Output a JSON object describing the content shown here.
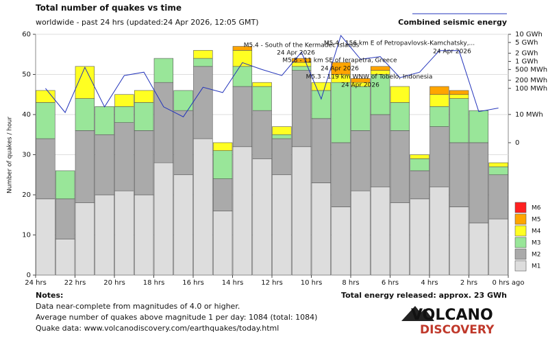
{
  "chart_data": {
    "type": "stacked_bar",
    "title": "Total number of quakes vs time",
    "subtitle": "worldwide - past 24 hrs (updated:24 Apr 2026, 12:05 GMT)",
    "ylabel": "Number of quakes / hour",
    "ylim": [
      0,
      60
    ],
    "yticks": [
      0,
      10,
      20,
      30,
      40,
      50,
      60
    ],
    "xtick_labels": [
      "24 hrs",
      "22 hrs",
      "20 hrs",
      "18 hrs",
      "16 hrs",
      "14 hrs",
      "12 hrs",
      "10 hrs",
      "8 hrs",
      "6 hrs",
      "4 hrs",
      "2 hrs",
      "0 hrs ago"
    ],
    "series": [
      {
        "name": "M1",
        "color": "#dddddd",
        "values": [
          19,
          9,
          18,
          20,
          21,
          20,
          28,
          25,
          34,
          16,
          32,
          29,
          25,
          32,
          23,
          17,
          21,
          22,
          18,
          19,
          22,
          17,
          13,
          14
        ]
      },
      {
        "name": "M2",
        "color": "#aaaaaa",
        "values": [
          15,
          10,
          18,
          15,
          17,
          16,
          20,
          16,
          18,
          8,
          15,
          12,
          9,
          19,
          16,
          16,
          15,
          18,
          18,
          7,
          15,
          16,
          20,
          11
        ]
      },
      {
        "name": "M3",
        "color": "#99e699",
        "values": [
          9,
          7,
          8,
          7,
          4,
          7,
          6,
          5,
          2,
          7,
          5,
          6,
          1,
          1,
          7,
          15,
          11,
          10,
          7,
          3,
          5,
          11,
          8,
          2
        ]
      },
      {
        "name": "M4",
        "color": "#ffff22",
        "values": [
          3,
          0,
          8,
          0,
          3,
          3,
          0,
          0,
          2,
          2,
          4,
          1,
          2,
          1,
          2,
          2,
          1,
          1,
          4,
          1,
          3,
          1,
          0,
          1
        ]
      },
      {
        "name": "M5",
        "color": "#ffa500",
        "values": [
          0,
          0,
          0,
          0,
          0,
          0,
          0,
          0,
          0,
          0,
          1,
          0,
          0,
          1,
          0,
          3,
          1,
          1,
          0,
          0,
          2,
          1,
          0,
          0
        ]
      },
      {
        "name": "M6",
        "color": "#ff2020",
        "values": [
          0,
          0,
          0,
          0,
          0,
          0,
          0,
          0,
          0,
          0,
          0,
          0,
          0,
          0,
          0,
          0,
          0,
          0,
          0,
          0,
          0,
          0,
          0,
          0
        ]
      }
    ],
    "energy": {
      "name": "Combined seismic energy",
      "color": "#2233bb",
      "axis": "y2",
      "values": [
        100,
        12,
        600,
        20,
        300,
        400,
        20,
        8,
        110,
        70,
        900,
        500,
        300,
        2200,
        40,
        9000,
        1200,
        1500,
        250,
        400,
        2500,
        2500,
        13,
        18
      ]
    },
    "y2lim": [
      0,
      10000
    ],
    "y2scale": "log1p",
    "y2ticks": [
      {
        "value": 10000,
        "label": "10 GWh"
      },
      {
        "value": 5000,
        "label": "5 GWh"
      },
      {
        "value": 2000,
        "label": "2 GWh"
      },
      {
        "value": 1000,
        "label": "1 GWh"
      },
      {
        "value": 500,
        "label": "500 MWh"
      },
      {
        "value": 200,
        "label": "200 MWh"
      },
      {
        "value": 100,
        "label": "100 MWh"
      },
      {
        "value": 10,
        "label": "10 MWh"
      },
      0
    ],
    "annotations": [
      "M5.4 - South of the Kermadec Islands",
      "24 Apr 2026",
      "M5.8 - 11 km SE of Ierapetra, Greece",
      "24 Apr 2026",
      "M5.3 - 119 km WNW of Tobelo, Indonesia",
      "24 Apr 2026",
      "M5.4 - 156 km E of Petropavlovsk-Kamchatsky,...",
      "24 Apr 2026"
    ],
    "notes_title": "Notes:",
    "notes": [
      "Data near-complete from magnitudes of 4.0 or higher.",
      "Average number of quakes above magnitude 1 per day: 1084 (total: 1084)",
      "Quake data: www.volcanodiscovery.com/earthquakes/today.html"
    ],
    "total_energy": "Total energy released: approx. 23 GWh",
    "logo": [
      "VOLCANO",
      "DISCOVERY"
    ]
  }
}
